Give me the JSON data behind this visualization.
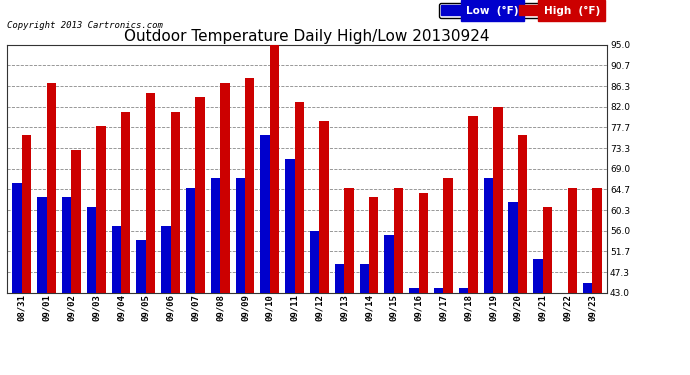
{
  "title": "Outdoor Temperature Daily High/Low 20130924",
  "copyright": "Copyright 2013 Cartronics.com",
  "legend_low_label": "Low  (°F)",
  "legend_high_label": "High  (°F)",
  "dates": [
    "08/31",
    "09/01",
    "09/02",
    "09/03",
    "09/04",
    "09/05",
    "09/06",
    "09/07",
    "09/08",
    "09/09",
    "09/10",
    "09/11",
    "09/12",
    "09/13",
    "09/14",
    "09/15",
    "09/16",
    "09/17",
    "09/18",
    "09/19",
    "09/20",
    "09/21",
    "09/22",
    "09/23"
  ],
  "low": [
    66,
    63,
    63,
    61,
    57,
    54,
    57,
    65,
    67,
    67,
    76,
    71,
    56,
    49,
    49,
    55,
    44,
    44,
    44,
    67,
    62,
    50,
    43,
    45
  ],
  "high": [
    76,
    87,
    73,
    78,
    81,
    85,
    81,
    84,
    87,
    88,
    95,
    83,
    79,
    65,
    63,
    65,
    64,
    67,
    80,
    82,
    76,
    61,
    65,
    65
  ],
  "ylim": [
    43.0,
    95.0
  ],
  "yticks": [
    43.0,
    47.3,
    51.7,
    56.0,
    60.3,
    64.7,
    69.0,
    73.3,
    77.7,
    82.0,
    86.3,
    90.7,
    95.0
  ],
  "bar_width": 0.38,
  "low_color": "#0000cc",
  "high_color": "#cc0000",
  "bg_color": "#ffffff",
  "grid_color": "#888888",
  "title_fontsize": 11,
  "tick_fontsize": 6.5,
  "copyright_fontsize": 6.5,
  "legend_fontsize": 7.5
}
